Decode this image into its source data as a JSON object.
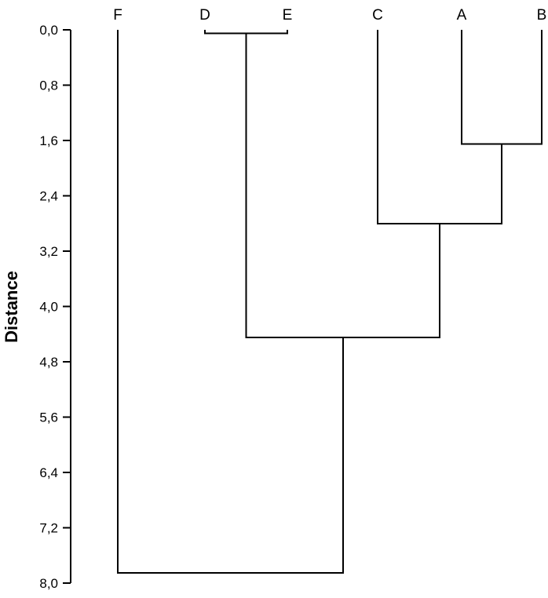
{
  "chart_data": {
    "type": "dendrogram",
    "ylabel": "Distance",
    "ylim": [
      0,
      8
    ],
    "y_inverted": true,
    "y_ticks": [
      "0,0",
      "0,8",
      "1,6",
      "2,4",
      "3,2",
      "4,0",
      "4,8",
      "5,6",
      "6,4",
      "7,2",
      "8,0"
    ],
    "leaves": [
      "F",
      "D",
      "E",
      "C",
      "A",
      "B"
    ],
    "merges": [
      {
        "left": "D",
        "right": "E",
        "distance": 0.05
      },
      {
        "left": "A",
        "right": "B",
        "distance": 1.65
      },
      {
        "left": "C",
        "right": "A+B",
        "distance": 2.8
      },
      {
        "left": "D+E",
        "right": "C+A+B",
        "distance": 4.45
      },
      {
        "left": "F",
        "right": "D+E+C+A+B",
        "distance": 7.85
      }
    ]
  }
}
